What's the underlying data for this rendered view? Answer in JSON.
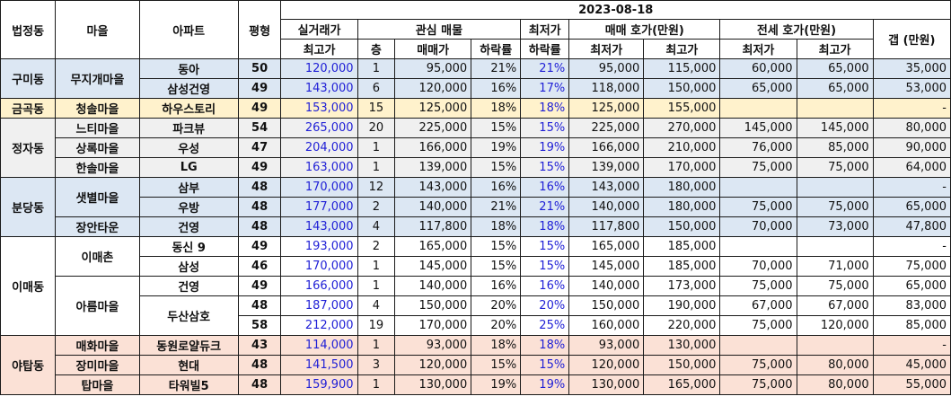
{
  "header": {
    "dong": "법정동",
    "village": "마을",
    "apt": "아파트",
    "size": "평형",
    "date": "2023-08-18",
    "real_trade_top": "실거래가",
    "real_trade_bottom": "최고가",
    "interest": "관심 매물",
    "floor": "층",
    "sale_price": "매매가",
    "drop_rate": "하락률",
    "min_top": "최저가",
    "min_bottom": "하락률",
    "sale_ask": "매매 호가(만원)",
    "sale_min": "최저가",
    "sale_max": "최고가",
    "jeonse_ask": "전세 호가(만원)",
    "jeonse_min": "최저가",
    "jeonse_max": "최고가",
    "gap": "갭 (만원)"
  },
  "rows": [
    {
      "dong": "구미동",
      "village": "무지개마을",
      "apt": "동아",
      "size": "50",
      "real": "120,000",
      "floor": "1",
      "price": "95,000",
      "drop": "21%",
      "min_drop": "21%",
      "smin": "95,000",
      "smax": "115,000",
      "jmin": "60,000",
      "jmax": "65,000",
      "gap": "35,000"
    },
    {
      "apt": "삼성건영",
      "size": "49",
      "real": "143,000",
      "floor": "6",
      "price": "120,000",
      "drop": "16%",
      "min_drop": "17%",
      "smin": "118,000",
      "smax": "150,000",
      "jmin": "65,000",
      "jmax": "65,000",
      "gap": "53,000"
    },
    {
      "dong": "금곡동",
      "village": "청솔마을",
      "apt": "하우스토리",
      "size": "49",
      "real": "153,000",
      "floor": "15",
      "price": "125,000",
      "drop": "18%",
      "min_drop": "18%",
      "smin": "125,000",
      "smax": "155,000",
      "jmin": "",
      "jmax": "",
      "gap": "-"
    },
    {
      "dong": "정자동",
      "village": "느티마을",
      "apt": "파크뷰",
      "size": "54",
      "real": "265,000",
      "floor": "20",
      "price": "225,000",
      "drop": "15%",
      "min_drop": "15%",
      "smin": "225,000",
      "smax": "270,000",
      "jmin": "145,000",
      "jmax": "145,000",
      "gap": "80,000"
    },
    {
      "village": "상록마을",
      "apt": "우성",
      "size": "47",
      "real": "204,000",
      "floor": "1",
      "price": "166,000",
      "drop": "19%",
      "min_drop": "19%",
      "smin": "166,000",
      "smax": "210,000",
      "jmin": "76,000",
      "jmax": "85,000",
      "gap": "90,000"
    },
    {
      "village": "한솔마을",
      "apt": "LG",
      "size": "49",
      "real": "163,000",
      "floor": "1",
      "price": "139,000",
      "drop": "15%",
      "min_drop": "15%",
      "smin": "139,000",
      "smax": "170,000",
      "jmin": "75,000",
      "jmax": "75,000",
      "gap": "64,000"
    },
    {
      "dong": "분당동",
      "village": "샛별마을",
      "apt": "삼부",
      "size": "48",
      "real": "170,000",
      "floor": "12",
      "price": "143,000",
      "drop": "16%",
      "min_drop": "16%",
      "smin": "143,000",
      "smax": "180,000",
      "jmin": "",
      "jmax": "",
      "gap": "-"
    },
    {
      "apt": "우방",
      "size": "48",
      "real": "177,000",
      "floor": "2",
      "price": "140,000",
      "drop": "21%",
      "min_drop": "21%",
      "smin": "140,000",
      "smax": "180,000",
      "jmin": "75,000",
      "jmax": "75,000",
      "gap": "65,000"
    },
    {
      "village": "장안타운",
      "apt": "건영",
      "size": "48",
      "real": "143,000",
      "floor": "4",
      "price": "117,800",
      "drop": "18%",
      "min_drop": "18%",
      "smin": "117,800",
      "smax": "150,000",
      "jmin": "70,000",
      "jmax": "73,000",
      "gap": "47,800"
    },
    {
      "dong": "이매동",
      "village": "이매촌",
      "apt": "동신 9",
      "size": "49",
      "real": "193,000",
      "floor": "2",
      "price": "165,000",
      "drop": "15%",
      "min_drop": "15%",
      "smin": "165,000",
      "smax": "185,000",
      "jmin": "",
      "jmax": "",
      "gap": "-"
    },
    {
      "apt": "삼성",
      "size": "46",
      "real": "170,000",
      "floor": "1",
      "price": "145,000",
      "drop": "15%",
      "min_drop": "15%",
      "smin": "145,000",
      "smax": "185,000",
      "jmin": "70,000",
      "jmax": "71,000",
      "gap": "75,000"
    },
    {
      "village": "아름마을",
      "apt": "건영",
      "size": "49",
      "real": "166,000",
      "floor": "1",
      "price": "140,000",
      "drop": "16%",
      "min_drop": "16%",
      "smin": "140,000",
      "smax": "173,000",
      "jmin": "75,000",
      "jmax": "75,000",
      "gap": "65,000"
    },
    {
      "apt": "두산삼호",
      "size": "48",
      "real": "187,000",
      "floor": "4",
      "price": "150,000",
      "drop": "20%",
      "min_drop": "20%",
      "smin": "150,000",
      "smax": "190,000",
      "jmin": "67,000",
      "jmax": "67,000",
      "gap": "83,000"
    },
    {
      "size": "58",
      "real": "212,000",
      "floor": "19",
      "price": "170,000",
      "drop": "20%",
      "min_drop": "25%",
      "smin": "160,000",
      "smax": "220,000",
      "jmin": "75,000",
      "jmax": "120,000",
      "gap": "85,000"
    },
    {
      "dong": "야탑동",
      "village": "매화마을",
      "apt": "동원로얄듀크",
      "size": "43",
      "real": "114,000",
      "floor": "1",
      "price": "93,000",
      "drop": "18%",
      "min_drop": "18%",
      "smin": "93,000",
      "smax": "130,000",
      "jmin": "",
      "jmax": "",
      "gap": "-"
    },
    {
      "village": "장미마을",
      "apt": "현대",
      "size": "48",
      "real": "141,500",
      "floor": "3",
      "price": "120,000",
      "drop": "15%",
      "min_drop": "15%",
      "smin": "120,000",
      "smax": "150,000",
      "jmin": "75,000",
      "jmax": "80,000",
      "gap": "45,000"
    },
    {
      "village": "탑마을",
      "apt": "타워빌5",
      "size": "48",
      "real": "159,900",
      "floor": "1",
      "price": "130,000",
      "drop": "19%",
      "min_drop": "19%",
      "smin": "130,000",
      "smax": "165,000",
      "jmin": "75,000",
      "jmax": "80,000",
      "gap": "55,000"
    }
  ]
}
